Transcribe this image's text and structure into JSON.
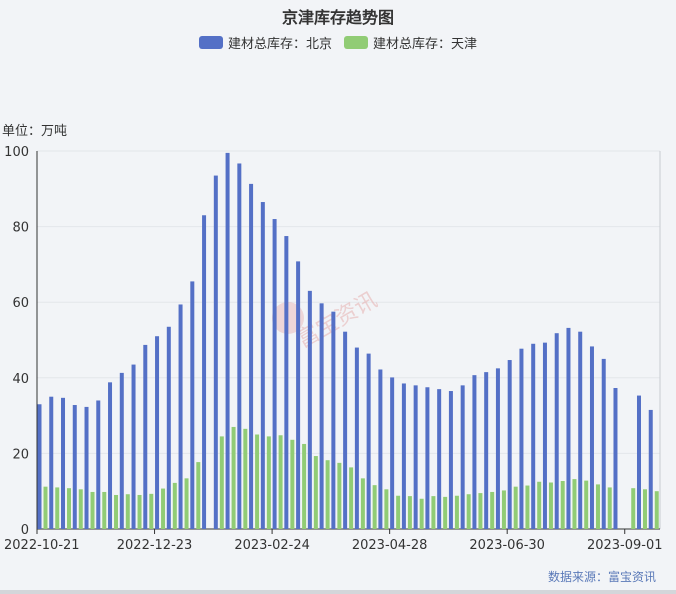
{
  "chart_data": {
    "type": "bar",
    "title": "京津库存趋势图",
    "unit_label": "单位：万吨",
    "ylim": [
      0,
      100
    ],
    "y_ticks": [
      0,
      20,
      40,
      60,
      80,
      100
    ],
    "x_tick_labels": [
      {
        "index": 0,
        "label": "2022-10-21"
      },
      {
        "index": 10,
        "label": "2022-12-23"
      },
      {
        "index": 20,
        "label": "2023-02-24"
      },
      {
        "index": 30,
        "label": "2023-04-28"
      },
      {
        "index": 40,
        "label": "2023-06-30"
      },
      {
        "index": 50,
        "label": "2023-09-01"
      }
    ],
    "series": [
      {
        "name": "建材总库存：北京",
        "color": "#5470c6",
        "values": [
          33,
          35,
          34.7,
          32.8,
          32.3,
          34,
          38.8,
          41.3,
          43.5,
          48.7,
          51,
          53.5,
          59.4,
          65.5,
          83,
          93.5,
          99.5,
          96.7,
          91.3,
          86.5,
          82,
          77.5,
          70.8,
          63,
          59.7,
          57.5,
          52.2,
          48,
          46.4,
          42.2,
          40.1,
          38.5,
          38,
          37.5,
          37,
          36.5,
          38,
          40.7,
          41.5,
          42.5,
          44.7,
          47.7,
          49,
          49.3,
          51.8,
          53.2,
          52.2,
          48.3,
          45,
          37.3,
          null,
          35.3,
          31.5
        ]
      },
      {
        "name": "建材总库存：天津",
        "color": "#91cc75",
        "values": [
          11.2,
          11,
          10.8,
          10.5,
          9.8,
          9.8,
          9,
          9.2,
          9,
          9.3,
          10.7,
          12.2,
          13.4,
          17.7,
          null,
          24.5,
          27,
          26.5,
          25,
          24.5,
          24.8,
          23.6,
          22.5,
          19.3,
          18.2,
          17.5,
          16.3,
          13.4,
          11.6,
          10.5,
          8.8,
          8.7,
          8,
          8.7,
          8.5,
          8.8,
          9.2,
          9.5,
          9.8,
          10.2,
          11.2,
          11.5,
          12.5,
          12.3,
          12.7,
          13.2,
          12.8,
          11.8,
          11,
          null,
          10.8,
          10.5,
          10
        ]
      }
    ]
  },
  "watermark": "富宝资讯",
  "source": "数据来源：富宝资讯"
}
